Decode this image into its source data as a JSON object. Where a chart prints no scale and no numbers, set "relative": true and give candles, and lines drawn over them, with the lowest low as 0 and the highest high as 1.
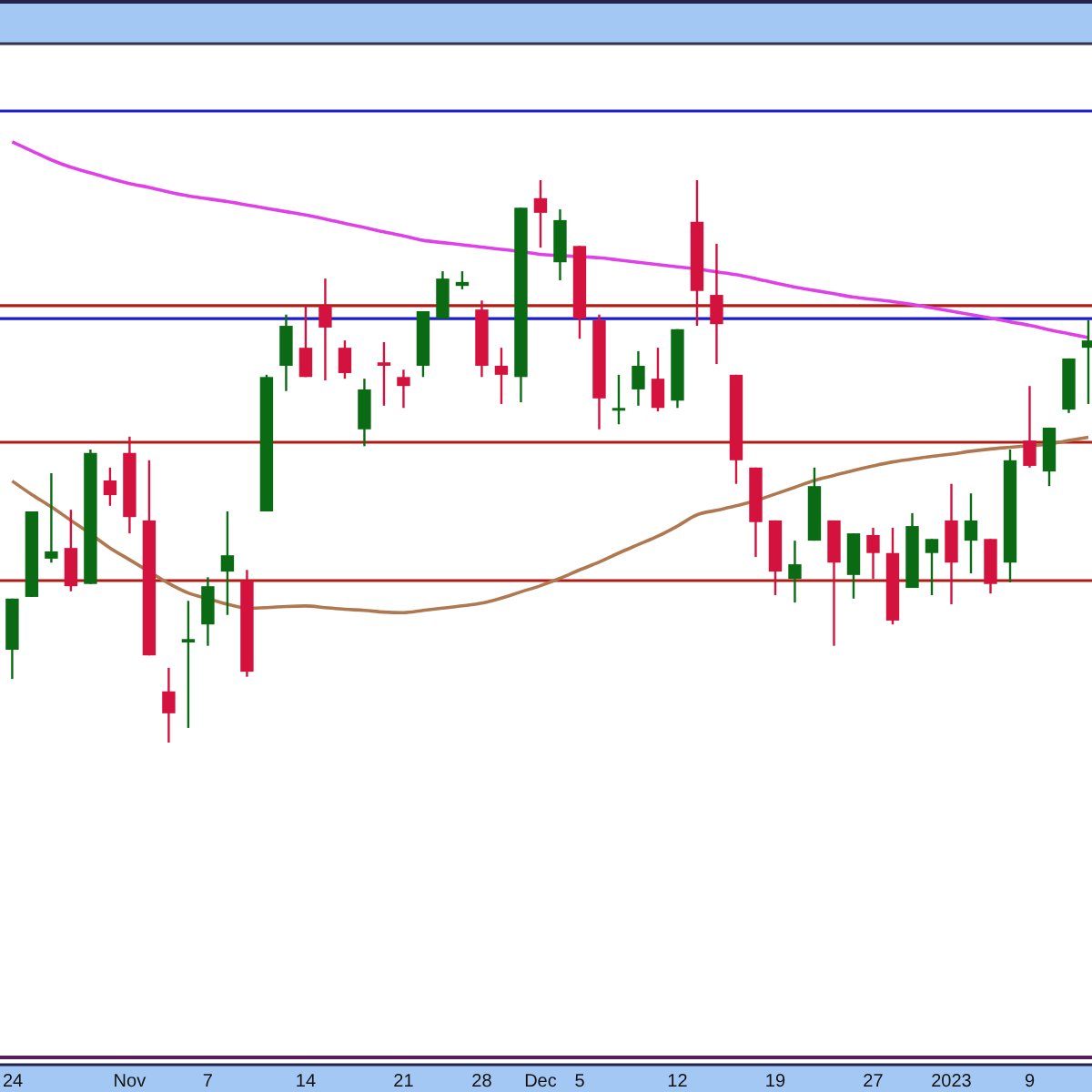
{
  "chart_data": {
    "type": "candlestick",
    "relative": true,
    "tick_labels": "x",
    "categories": [
      "24",
      null,
      null,
      null,
      null,
      null,
      "Nov",
      null,
      null,
      null,
      "7",
      null,
      null,
      null,
      null,
      "14",
      null,
      null,
      null,
      null,
      "21",
      null,
      null,
      null,
      "28",
      null,
      null,
      "Dec",
      null,
      "5",
      null,
      null,
      null,
      null,
      "12",
      null,
      null,
      null,
      null,
      "19",
      null,
      null,
      null,
      null,
      "27",
      null,
      null,
      null,
      "2023",
      null,
      null,
      null,
      "9",
      null,
      null,
      null
    ],
    "ohlc": [
      [
        0.165,
        0.256,
        0.113,
        0.256
      ],
      [
        0.259,
        0.411,
        0.259,
        0.411
      ],
      [
        0.327,
        0.479,
        0.32,
        0.34
      ],
      [
        0.346,
        0.414,
        0.269,
        0.278
      ],
      [
        0.282,
        0.521,
        0.282,
        0.515
      ],
      [
        0.466,
        0.489,
        0.421,
        0.44
      ],
      [
        0.515,
        0.544,
        0.372,
        0.401
      ],
      [
        0.395,
        0.502,
        0.155,
        0.155
      ],
      [
        0.091,
        0.133,
        0,
        0.052
      ],
      [
        0.178,
        0.252,
        0.026,
        0.184
      ],
      [
        0.21,
        0.294,
        0.172,
        0.278
      ],
      [
        0.304,
        0.411,
        0.227,
        0.333
      ],
      [
        0.288,
        0.307,
        0.117,
        0.126
      ],
      [
        0.411,
        0.654,
        0.411,
        0.65
      ],
      [
        0.67,
        0.761,
        0.625,
        0.741
      ],
      [
        0.702,
        0.777,
        0.65,
        0.65
      ],
      [
        0.777,
        0.825,
        0.644,
        0.738
      ],
      [
        0.702,
        0.715,
        0.647,
        0.657
      ],
      [
        0.557,
        0.647,
        0.527,
        0.628
      ],
      [
        0.676,
        0.712,
        0.599,
        0.67
      ],
      [
        0.65,
        0.663,
        0.595,
        0.634
      ],
      [
        0.67,
        0.767,
        0.65,
        0.767
      ],
      [
        0.754,
        0.838,
        0.754,
        0.825
      ],
      [
        0.812,
        0.838,
        0.806,
        0.819
      ],
      [
        0.77,
        0.786,
        0.65,
        0.67
      ],
      [
        0.67,
        0.702,
        0.602,
        0.654
      ],
      [
        0.65,
        0.951,
        0.605,
        0.951
      ],
      [
        0.968,
        1,
        0.88,
        0.942
      ],
      [
        0.854,
        0.948,
        0.822,
        0.929
      ],
      [
        0.883,
        0.883,
        0.718,
        0.754
      ],
      [
        0.751,
        0.761,
        0.557,
        0.612
      ],
      [
        0.592,
        0.654,
        0.566,
        0.595
      ],
      [
        0.628,
        0.696,
        0.599,
        0.67
      ],
      [
        0.647,
        0.702,
        0.589,
        0.595
      ],
      [
        0.608,
        0.735,
        0.595,
        0.735
      ],
      [
        0.926,
        1,
        0.741,
        0.803
      ],
      [
        0.796,
        0.887,
        0.673,
        0.744
      ],
      [
        0.654,
        0.654,
        0.46,
        0.502
      ],
      [
        0.489,
        0.489,
        0.33,
        0.392
      ],
      [
        0.395,
        0.395,
        0.262,
        0.304
      ],
      [
        0.291,
        0.359,
        0.249,
        0.317
      ],
      [
        0.359,
        0.489,
        0.359,
        0.456
      ],
      [
        0.395,
        0.395,
        0.172,
        0.32
      ],
      [
        0.298,
        0.372,
        0.256,
        0.372
      ],
      [
        0.369,
        0.382,
        0.291,
        0.337
      ],
      [
        0.337,
        0.382,
        0.21,
        0.217
      ],
      [
        0.275,
        0.408,
        0.275,
        0.385
      ],
      [
        0.337,
        0.362,
        0.262,
        0.362
      ],
      [
        0.395,
        0.46,
        0.246,
        0.32
      ],
      [
        0.359,
        0.443,
        0.301,
        0.395
      ],
      [
        0.362,
        0.362,
        0.265,
        0.282
      ],
      [
        0.32,
        0.521,
        0.285,
        0.502
      ],
      [
        0.537,
        0.634,
        0.489,
        0.492
      ],
      [
        0.482,
        0.56,
        0.456,
        0.56
      ],
      [
        0.592,
        0.683,
        0.586,
        0.683
      ],
      [
        0.702,
        0.751,
        0.602,
        0.715
      ]
    ],
    "colors": [
      "#0b6b14",
      "#0b6b14",
      "#0b6b14",
      "#d4123e",
      "#0b6b14",
      "#d4123e",
      "#d4123e",
      "#d4123e",
      "#d4123e",
      "#0b6b14",
      "#0b6b14",
      "#0b6b14",
      "#d4123e",
      "#0b6b14",
      "#0b6b14",
      "#d4123e",
      "#d4123e",
      "#d4123e",
      "#0b6b14",
      "#d4123e",
      "#d4123e",
      "#0b6b14",
      "#0b6b14",
      "#0b6b14",
      "#d4123e",
      "#d4123e",
      "#0b6b14",
      "#d4123e",
      "#0b6b14",
      "#d4123e",
      "#d4123e",
      "#0b6b14",
      "#0b6b14",
      "#d4123e",
      "#0b6b14",
      "#d4123e",
      "#d4123e",
      "#d4123e",
      "#d4123e",
      "#d4123e",
      "#0b6b14",
      "#0b6b14",
      "#d4123e",
      "#0b6b14",
      "#d4123e",
      "#d4123e",
      "#0b6b14",
      "#0b6b14",
      "#d4123e",
      "#0b6b14",
      "#d4123e",
      "#0b6b14",
      "#d4123e",
      "#0b6b14",
      "#0b6b14",
      "#0b6b14"
    ],
    "series": [
      {
        "type": "line",
        "color": "#e040e8",
        "values": [
          1.068,
          1.052,
          1.036,
          1.023,
          1.013,
          1.003,
          0.994,
          0.987,
          0.979,
          0.972,
          0.967,
          0.962,
          0.956,
          0.95,
          0.944,
          0.938,
          0.931,
          0.923,
          0.916,
          0.908,
          0.901,
          0.893,
          0.889,
          0.885,
          0.881,
          0.877,
          0.873,
          0.868,
          0.866,
          0.864,
          0.862,
          0.858,
          0.854,
          0.85,
          0.846,
          0.842,
          0.837,
          0.832,
          0.825,
          0.817,
          0.81,
          0.804,
          0.798,
          0.792,
          0.788,
          0.784,
          0.779,
          0.773,
          0.767,
          0.761,
          0.755,
          0.748,
          0.742,
          0.734,
          0.727,
          0.72
        ]
      },
      {
        "type": "line",
        "color": "#b07850",
        "values": [
          0.465,
          0.441,
          0.419,
          0.395,
          0.371,
          0.346,
          0.325,
          0.304,
          0.283,
          0.266,
          0.256,
          0.246,
          0.239,
          0.24,
          0.242,
          0.243,
          0.24,
          0.237,
          0.235,
          0.232,
          0.231,
          0.235,
          0.239,
          0.243,
          0.248,
          0.257,
          0.268,
          0.279,
          0.292,
          0.307,
          0.321,
          0.337,
          0.352,
          0.367,
          0.385,
          0.405,
          0.413,
          0.421,
          0.43,
          0.442,
          0.454,
          0.466,
          0.475,
          0.484,
          0.492,
          0.499,
          0.504,
          0.509,
          0.513,
          0.518,
          0.522,
          0.525,
          0.528,
          0.531,
          0.537,
          0.543
        ]
      }
    ],
    "ref_lines": [
      {
        "axis": "y",
        "value": 1.123,
        "color": "#1c1ccc"
      },
      {
        "axis": "y",
        "value": 0.777,
        "color": "#b01c14"
      },
      {
        "axis": "y",
        "value": 0.754,
        "color": "#1c1ccc"
      },
      {
        "axis": "y",
        "value": 0.534,
        "color": "#b01c14"
      },
      {
        "axis": "y",
        "value": 0.288,
        "color": "#b01c14"
      }
    ]
  }
}
